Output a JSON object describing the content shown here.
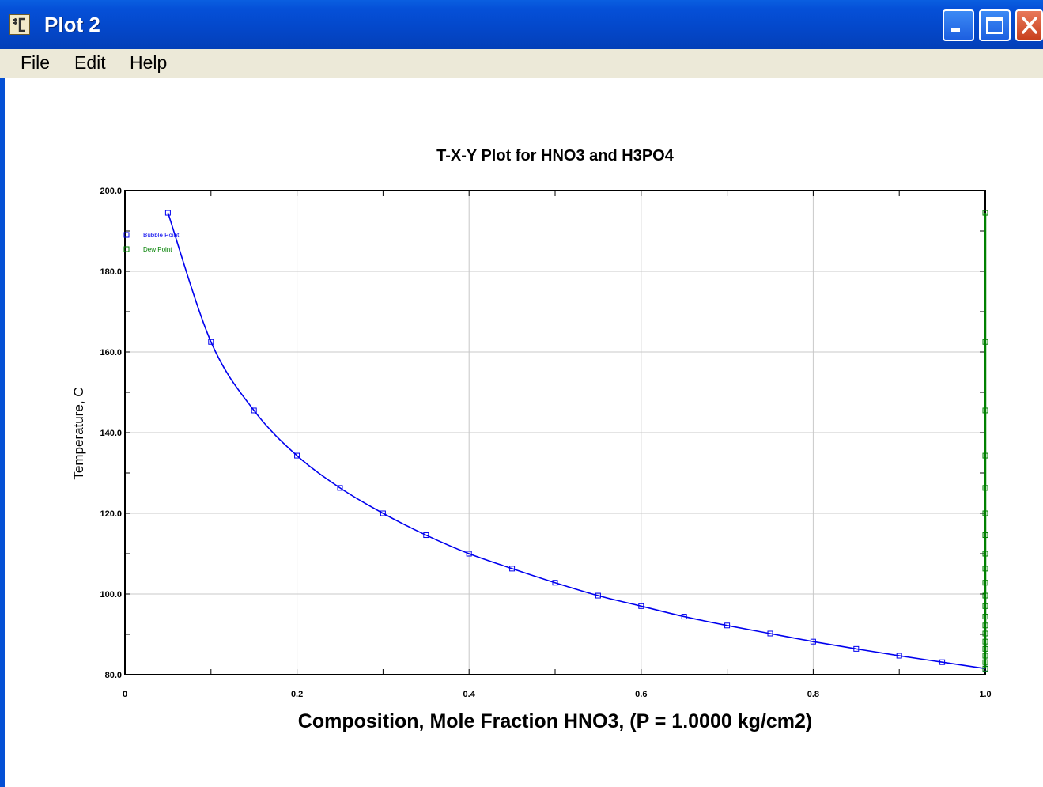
{
  "window": {
    "title": "Plot 2",
    "menu": [
      "File",
      "Edit",
      "Help"
    ]
  },
  "colors": {
    "titlebar": "#0450d5",
    "menubar": "#ece9d8",
    "bubble": "#0000ee",
    "dew": "#008000",
    "grid": "#c8c8c8"
  },
  "icons": [
    "app-icon",
    "minimize-icon",
    "maximize-icon",
    "close-icon"
  ],
  "chart_data": {
    "type": "line",
    "title": "T-X-Y Plot for HNO3 and H3PO4",
    "xlabel": "Composition, Mole Fraction HNO3, (P = 1.0000 kg/cm2)",
    "ylabel": "Temperature, C",
    "xlim": [
      0,
      1.0
    ],
    "ylim": [
      80,
      200
    ],
    "x_ticks": [
      "0",
      "0.2",
      "0.4",
      "0.6",
      "0.8",
      "1.0"
    ],
    "y_ticks": [
      "80.0",
      "100.0",
      "120.0",
      "140.0",
      "160.0",
      "180.0",
      "200.0"
    ],
    "grid": true,
    "legend": "top-left",
    "series": [
      {
        "name": "Bubble Point",
        "color": "#0000ee",
        "x": [
          0.05,
          0.1,
          0.15,
          0.2,
          0.25,
          0.3,
          0.35,
          0.4,
          0.45,
          0.5,
          0.55,
          0.6,
          0.65,
          0.7,
          0.75,
          0.8,
          0.85,
          0.9,
          0.95,
          1.0
        ],
        "y": [
          194.5,
          162.5,
          145.5,
          134.3,
          126.3,
          120.0,
          114.6,
          110.0,
          106.3,
          102.8,
          99.6,
          97.0,
          94.4,
          92.2,
          90.2,
          88.2,
          86.4,
          84.7,
          83.1,
          81.5
        ]
      },
      {
        "name": "Dew Point",
        "color": "#008000",
        "x": [
          1.0,
          1.0,
          1.0,
          1.0,
          1.0,
          1.0,
          1.0,
          1.0,
          1.0,
          1.0,
          1.0,
          1.0,
          1.0,
          1.0,
          1.0,
          1.0,
          1.0,
          1.0,
          1.0,
          1.0
        ],
        "y": [
          194.5,
          162.5,
          145.5,
          134.3,
          126.3,
          120.0,
          114.6,
          110.0,
          106.3,
          102.8,
          99.6,
          97.0,
          94.4,
          92.2,
          90.2,
          88.2,
          86.4,
          84.7,
          83.1,
          81.5
        ]
      }
    ]
  }
}
